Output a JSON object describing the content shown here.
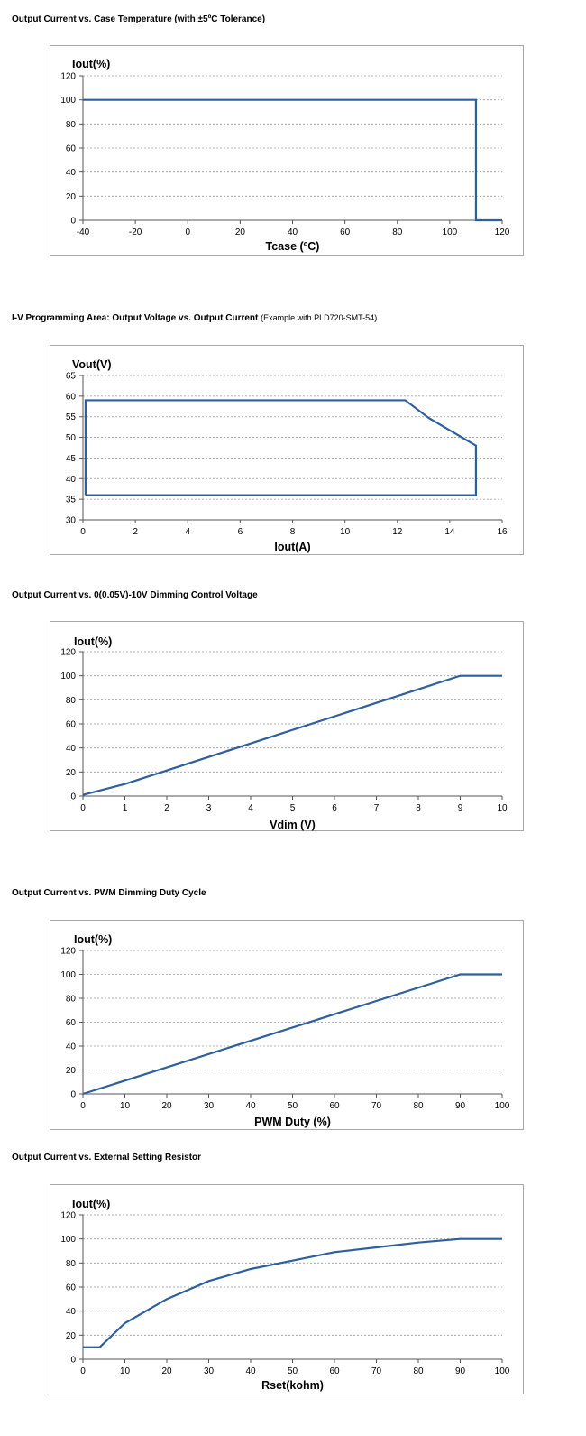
{
  "chart_data": [
    {
      "id": "c1",
      "type": "line",
      "title": "Output Current vs. Case Temperature (with ±5ºC Tolerance)",
      "note": "",
      "xlabel": "Tcase (ºC)",
      "ylabel": "Iout(%)",
      "xlim": [
        -40,
        120
      ],
      "ylim": [
        0,
        120
      ],
      "xticks": [
        -40,
        -20,
        0,
        20,
        40,
        60,
        80,
        100,
        120
      ],
      "yticks": [
        0,
        20,
        40,
        60,
        80,
        100,
        120
      ],
      "grid": true,
      "legend": "none",
      "line_color": "#2e5f9e",
      "series": [
        {
          "x": [
            -40,
            110,
            110,
            120
          ],
          "y": [
            100,
            100,
            0,
            0
          ]
        }
      ]
    },
    {
      "id": "c2",
      "type": "line",
      "title": "I-V Programming Area: Output Voltage vs. Output Current",
      "note": "(Example with PLD720-SMT-54)",
      "xlabel": "Iout(A)",
      "ylabel": "Vout(V)",
      "xlim": [
        0,
        16
      ],
      "ylim": [
        30,
        65
      ],
      "xticks": [
        0,
        2,
        4,
        6,
        8,
        10,
        12,
        14,
        16
      ],
      "yticks": [
        30,
        35,
        40,
        45,
        50,
        55,
        60,
        65
      ],
      "grid": true,
      "legend": "none",
      "line_color": "#2e5f9e",
      "series": [
        {
          "x": [
            0.1,
            0.1,
            12.3,
            13.2,
            15,
            15,
            0.1
          ],
          "y": [
            36,
            59,
            59,
            54.7,
            48,
            36,
            36
          ]
        }
      ]
    },
    {
      "id": "c3",
      "type": "line",
      "title": "Output Current vs. 0(0.05V)-10V Dimming Control Voltage",
      "note": "",
      "xlabel": "Vdim (V)",
      "ylabel": "Iout(%)",
      "xlim": [
        0,
        10
      ],
      "ylim": [
        0,
        120
      ],
      "xticks": [
        0,
        1,
        2,
        3,
        4,
        5,
        6,
        7,
        8,
        9,
        10
      ],
      "yticks": [
        0,
        20,
        40,
        60,
        80,
        100,
        120
      ],
      "grid": true,
      "legend": "none",
      "line_color": "#2e5f9e",
      "series": [
        {
          "x": [
            0,
            1,
            9,
            10
          ],
          "y": [
            1,
            10,
            100,
            100
          ]
        }
      ]
    },
    {
      "id": "c4",
      "type": "line",
      "title": "Output Current vs. PWM Dimming Duty Cycle",
      "note": "",
      "xlabel": "PWM Duty (%)",
      "ylabel": "Iout(%)",
      "xlim": [
        0,
        100
      ],
      "ylim": [
        0,
        120
      ],
      "xticks": [
        0,
        10,
        20,
        30,
        40,
        50,
        60,
        70,
        80,
        90,
        100
      ],
      "yticks": [
        0,
        20,
        40,
        60,
        80,
        100,
        120
      ],
      "grid": true,
      "legend": "none",
      "line_color": "#2e5f9e",
      "series": [
        {
          "x": [
            0,
            90,
            100
          ],
          "y": [
            0,
            100,
            100
          ]
        }
      ]
    },
    {
      "id": "c5",
      "type": "line",
      "title": "Output Current vs. External Setting Resistor",
      "note": "",
      "xlabel": "Rset(kohm)",
      "ylabel": "Iout(%)",
      "xlim": [
        0,
        100
      ],
      "ylim": [
        0,
        120
      ],
      "xticks": [
        0,
        10,
        20,
        30,
        40,
        50,
        60,
        70,
        80,
        90,
        100
      ],
      "yticks": [
        0,
        20,
        40,
        60,
        80,
        100,
        120
      ],
      "grid": true,
      "legend": "none",
      "line_color": "#2e5f9e",
      "series": [
        {
          "x": [
            0,
            4,
            10,
            20,
            30,
            40,
            50,
            60,
            70,
            80,
            90,
            100
          ],
          "y": [
            10,
            10,
            30,
            50,
            65,
            75,
            82,
            89,
            93,
            97,
            100,
            100
          ]
        }
      ]
    }
  ]
}
